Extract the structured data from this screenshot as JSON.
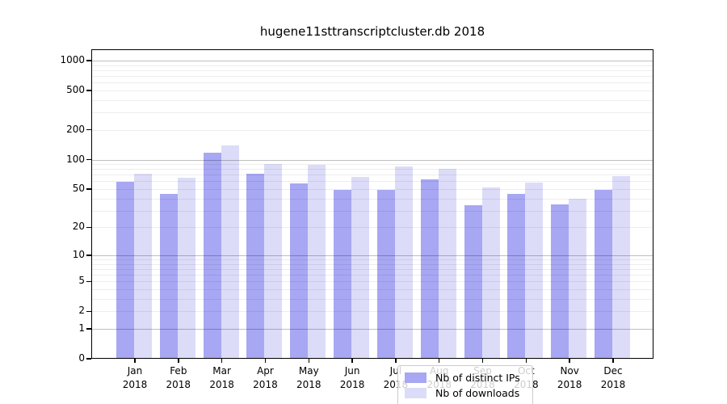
{
  "title": "hugene11sttranscriptcluster.db 2018",
  "colors": {
    "distinct_ips": "#a7a7f3",
    "downloads": "#dcdcf9",
    "axis": "#000000",
    "grid_major": "rgba(0,0,0,0.25)",
    "grid_minor": "rgba(0,0,0,0.07)",
    "legend_border": "#cccccc"
  },
  "legend": {
    "items": [
      {
        "label": "Nb of distinct IPs",
        "series": "distinct_ips"
      },
      {
        "label": "Nb of downloads",
        "series": "downloads"
      }
    ]
  },
  "chart_data": {
    "type": "bar",
    "scale": "log1p",
    "title": "hugene11sttranscriptcluster.db 2018",
    "categories": [
      "Jan 2018",
      "Feb 2018",
      "Mar 2018",
      "Apr 2018",
      "May 2018",
      "Jun 2018",
      "Jul 2018",
      "Aug 2018",
      "Sep 2018",
      "Oct 2018",
      "Nov 2018",
      "Dec 2018"
    ],
    "series": [
      {
        "name": "Nb of distinct IPs",
        "key": "distinct_ips",
        "values": [
          59,
          45,
          118,
          72,
          57,
          49,
          49,
          63,
          34,
          45,
          35,
          49
        ]
      },
      {
        "name": "Nb of downloads",
        "key": "downloads",
        "values": [
          72,
          65,
          140,
          90,
          89,
          67,
          85,
          80,
          52,
          58,
          40,
          68
        ]
      }
    ],
    "y_ticks": [
      0,
      1,
      2,
      5,
      10,
      20,
      50,
      100,
      200,
      500,
      1000
    ],
    "ylim": [
      0,
      1200
    ],
    "xlabel": "",
    "ylabel": "",
    "grid": "on",
    "legend_position": "inside-bottom-center"
  }
}
